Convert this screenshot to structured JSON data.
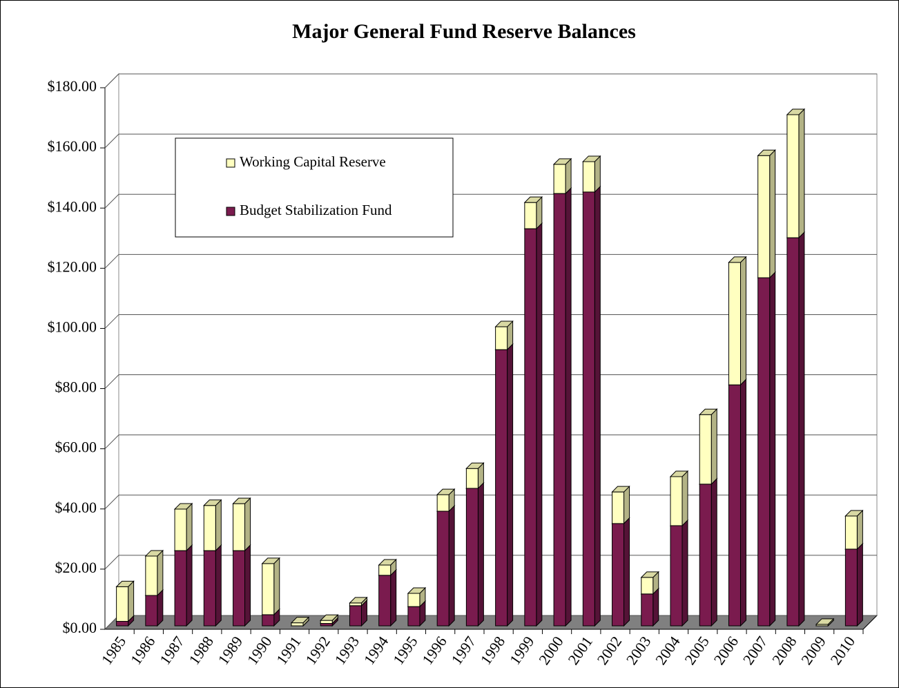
{
  "chart_data": {
    "type": "bar",
    "stacked": true,
    "title": "Major General Fund Reserve Balances",
    "categories": [
      "1985",
      "1986",
      "1987",
      "1988",
      "1989",
      "1990",
      "1991",
      "1992",
      "1993",
      "1994",
      "1995",
      "1996",
      "1997",
      "1998",
      "1999",
      "2000",
      "2001",
      "2002",
      "2003",
      "2004",
      "2005",
      "2006",
      "2007",
      "2008",
      "2009",
      "2010"
    ],
    "series": [
      {
        "name": "Working Capital Reserve",
        "color": "#ffffc0",
        "values": [
          11.5,
          13.1,
          13.8,
          15,
          15.6,
          17,
          1,
          1,
          0.9,
          3.4,
          4.4,
          5.5,
          6.6,
          7.6,
          8.7,
          9.7,
          10.1,
          10.5,
          5.5,
          16.3,
          23.1,
          40.7,
          40.6,
          40.9,
          0.5,
          11
        ]
      },
      {
        "name": "Budget Stabilization Fund",
        "color": "#7a1b4e",
        "values": [
          1.5,
          10.1,
          25,
          25,
          25,
          3.7,
          0,
          0.8,
          6.7,
          16.8,
          6.4,
          38.1,
          45.7,
          91.8,
          132,
          143.7,
          144.2,
          34,
          10.6,
          33.3,
          47.1,
          80.1,
          115.7,
          129,
          0,
          25.5
        ]
      }
    ],
    "ylim": [
      0,
      180
    ],
    "yticks": [
      {
        "value": 0,
        "label": "$0.00"
      },
      {
        "value": 20,
        "label": "$20.00"
      },
      {
        "value": 40,
        "label": "$40.00"
      },
      {
        "value": 60,
        "label": "$60.00"
      },
      {
        "value": 80,
        "label": "$80.00"
      },
      {
        "value": 100,
        "label": "$100.00"
      },
      {
        "value": 120,
        "label": "$120.00"
      },
      {
        "value": 140,
        "label": "$140.00"
      },
      {
        "value": 160,
        "label": "$160.00"
      },
      {
        "value": 180,
        "label": "$180.00"
      }
    ],
    "grid": true,
    "legend": "upper left"
  }
}
